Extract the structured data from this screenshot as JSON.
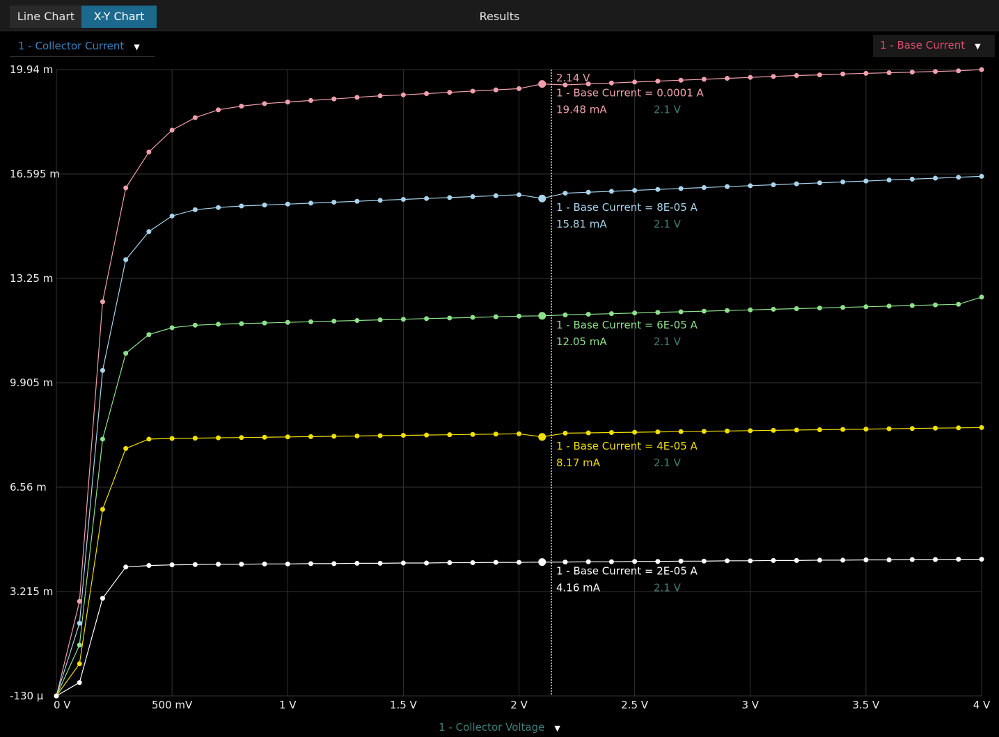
{
  "tabs": [
    {
      "label": "Line Chart",
      "active": false
    },
    {
      "label": "X-Y Chart",
      "active": true
    }
  ],
  "title": "Results",
  "y_selector": {
    "label": "1 - Collector Current",
    "color": "#3a82bf"
  },
  "series_selector": {
    "label": "1 - Base Current",
    "color": "#d94a6c"
  },
  "x_selector": {
    "label": "1 - Collector Voltage",
    "color": "#3f7f7a"
  },
  "cursor": {
    "x_label": "2.14 V",
    "x": 2.14
  },
  "chart_data": {
    "type": "line",
    "xlabel": "1 - Collector Voltage",
    "ylabel": "1 - Collector Current",
    "xlim": [
      0,
      4
    ],
    "ylim": [
      -0.00013,
      0.01994
    ],
    "x_ticks": [
      {
        "v": 0,
        "label": "0 V"
      },
      {
        "v": 0.5,
        "label": "500 mV"
      },
      {
        "v": 1,
        "label": "1 V"
      },
      {
        "v": 1.5,
        "label": "1.5 V"
      },
      {
        "v": 2,
        "label": "2 V"
      },
      {
        "v": 2.5,
        "label": "2.5 V"
      },
      {
        "v": 3,
        "label": "3 V"
      },
      {
        "v": 3.5,
        "label": "3.5 V"
      },
      {
        "v": 4,
        "label": "4 V"
      }
    ],
    "y_ticks": [
      {
        "v": 0.01994,
        "label": "19.94 m"
      },
      {
        "v": 0.016595,
        "label": "16.595 m"
      },
      {
        "v": 0.01325,
        "label": "13.25 m"
      },
      {
        "v": 0.009905,
        "label": "9.905 m"
      },
      {
        "v": 0.00656,
        "label": "6.56 m"
      },
      {
        "v": 0.003215,
        "label": "3.215 m"
      },
      {
        "v": -0.00013,
        "label": "-130 μ"
      }
    ],
    "grid": true,
    "x": [
      0,
      0.1,
      0.2,
      0.3,
      0.4,
      0.5,
      0.6,
      0.7,
      0.8,
      0.9,
      1,
      1.1,
      1.2,
      1.3,
      1.4,
      1.5,
      1.6,
      1.7,
      1.8,
      1.9,
      2,
      2.1,
      2.2,
      2.3,
      2.4,
      2.5,
      2.6,
      2.7,
      2.8,
      2.9,
      3,
      3.1,
      3.2,
      3.3,
      3.4,
      3.5,
      3.6,
      3.7,
      3.8,
      3.9,
      4
    ],
    "series": [
      {
        "name": "1 - Base Current = 0.0001 A",
        "color": "#f0a0ac",
        "cursor_value": "19.48 mA",
        "cursor_x": "2.1 V",
        "values": [
          -0.00013,
          0.0029,
          0.0125,
          0.01615,
          0.0173,
          0.018,
          0.0184,
          0.01865,
          0.01877,
          0.01885,
          0.0189,
          0.01895,
          0.019,
          0.01905,
          0.0191,
          0.01913,
          0.01917,
          0.01921,
          0.01925,
          0.01929,
          0.01933,
          0.01948,
          0.01945,
          0.01948,
          0.01951,
          0.01954,
          0.01957,
          0.0196,
          0.01963,
          0.01966,
          0.01969,
          0.01972,
          0.01975,
          0.01977,
          0.0198,
          0.01982,
          0.01984,
          0.01986,
          0.01988,
          0.0199,
          0.01994
        ]
      },
      {
        "name": "1 - Base Current = 8E-05 A",
        "color": "#a8d4ec",
        "cursor_value": "15.81 mA",
        "cursor_x": "2.1 V",
        "values": [
          -0.00013,
          0.0022,
          0.0103,
          0.01385,
          0.01475,
          0.01525,
          0.01545,
          0.01552,
          0.01557,
          0.0156,
          0.01563,
          0.01566,
          0.01569,
          0.01572,
          0.01575,
          0.01578,
          0.01581,
          0.01584,
          0.01587,
          0.0159,
          0.01593,
          0.01581,
          0.01598,
          0.01601,
          0.01604,
          0.01607,
          0.0161,
          0.01613,
          0.01616,
          0.01619,
          0.01622,
          0.01625,
          0.01628,
          0.01631,
          0.01634,
          0.01637,
          0.0164,
          0.01643,
          0.01646,
          0.01649,
          0.01652
        ]
      },
      {
        "name": "1 - Base Current = 6E-05 A",
        "color": "#8fe08c",
        "cursor_value": "12.05 mA",
        "cursor_x": "2.1 V",
        "values": [
          -0.00013,
          0.0015,
          0.0081,
          0.01085,
          0.01145,
          0.01167,
          0.01175,
          0.01178,
          0.0118,
          0.01182,
          0.01184,
          0.01186,
          0.01188,
          0.0119,
          0.01192,
          0.01194,
          0.01196,
          0.01198,
          0.012,
          0.01202,
          0.01204,
          0.01205,
          0.01208,
          0.0121,
          0.01212,
          0.01214,
          0.01216,
          0.01218,
          0.0122,
          0.01222,
          0.01224,
          0.01226,
          0.01228,
          0.0123,
          0.01232,
          0.01234,
          0.01236,
          0.01238,
          0.0124,
          0.01242,
          0.01265
        ]
      },
      {
        "name": "1 - Base Current = 4E-05 A",
        "color": "#f0e000",
        "cursor_value": "8.17 mA",
        "cursor_x": "2.1 V",
        "values": [
          -0.00013,
          0.0009,
          0.00585,
          0.0078,
          0.0081,
          0.00812,
          0.00813,
          0.00814,
          0.00815,
          0.00816,
          0.00817,
          0.00818,
          0.00819,
          0.0082,
          0.00821,
          0.00822,
          0.00823,
          0.00824,
          0.00825,
          0.00826,
          0.00827,
          0.00817,
          0.00829,
          0.0083,
          0.00831,
          0.00832,
          0.00833,
          0.00834,
          0.00835,
          0.00836,
          0.00837,
          0.00838,
          0.00839,
          0.0084,
          0.00841,
          0.00842,
          0.00843,
          0.00844,
          0.00845,
          0.00846,
          0.00847
        ]
      },
      {
        "name": "1 - Base Current = 2E-05 A",
        "color": "#ffffff",
        "cursor_value": "4.16 mA",
        "cursor_x": "2.1 V",
        "values": [
          -0.00013,
          0.0003,
          0.003,
          0.004,
          0.00405,
          0.00407,
          0.00408,
          0.00409,
          0.00409,
          0.0041,
          0.0041,
          0.00411,
          0.00411,
          0.00412,
          0.00412,
          0.00413,
          0.00413,
          0.00414,
          0.00414,
          0.00415,
          0.00415,
          0.00416,
          0.00416,
          0.00417,
          0.00417,
          0.00418,
          0.00418,
          0.00419,
          0.00419,
          0.0042,
          0.0042,
          0.00421,
          0.00421,
          0.00422,
          0.00422,
          0.00423,
          0.00423,
          0.00424,
          0.00424,
          0.00425,
          0.00425
        ]
      }
    ],
    "cursor_index": 21
  }
}
